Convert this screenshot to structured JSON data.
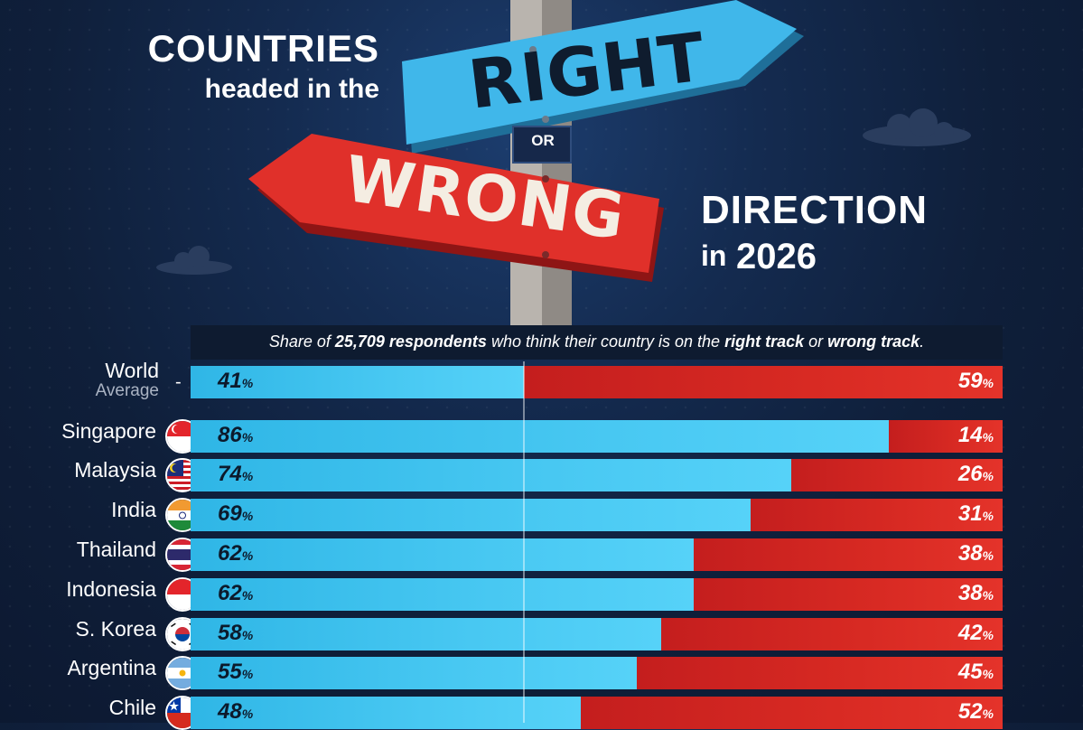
{
  "header": {
    "title_countries": "COUNTRIES",
    "title_headed": "headed in the",
    "title_right": "RIGHT",
    "title_or": "OR",
    "title_wrong": "WRONG",
    "title_direction": "DIRECTION",
    "title_in": "in",
    "title_year": "2026"
  },
  "subtitle": {
    "part1": "Share of ",
    "part2": "25,709 respondents",
    "part3": " who think their country is on the ",
    "part4": "right track",
    "part5": " or ",
    "part6": "wrong track",
    "part7": "."
  },
  "world": {
    "label_top": "World",
    "label_bottom": "Average",
    "dash": "-"
  },
  "colors": {
    "right_track": "#48c8f2",
    "wrong_track": "#d82a23",
    "background": "#142b50"
  },
  "chart_data": {
    "type": "bar",
    "orientation": "horizontal-stacked",
    "series": [
      {
        "name": "right track",
        "values": [
          41,
          86,
          74,
          69,
          62,
          62,
          58,
          55,
          48
        ]
      },
      {
        "name": "wrong track",
        "values": [
          59,
          14,
          26,
          31,
          38,
          38,
          42,
          45,
          52
        ]
      }
    ],
    "rows": [
      {
        "country": "World Average",
        "flag": "none",
        "right": 41,
        "wrong": 59,
        "right_text": "41",
        "wrong_text": "59"
      },
      {
        "country": "Singapore",
        "flag": "singapore-flag-icon",
        "right": 86,
        "wrong": 14,
        "right_text": "86",
        "wrong_text": "14"
      },
      {
        "country": "Malaysia",
        "flag": "malaysia-flag-icon",
        "right": 74,
        "wrong": 26,
        "right_text": "74",
        "wrong_text": "26"
      },
      {
        "country": "India",
        "flag": "india-flag-icon",
        "right": 69,
        "wrong": 31,
        "right_text": "69",
        "wrong_text": "31"
      },
      {
        "country": "Thailand",
        "flag": "thailand-flag-icon",
        "right": 62,
        "wrong": 38,
        "right_text": "62",
        "wrong_text": "38"
      },
      {
        "country": "Indonesia",
        "flag": "indonesia-flag-icon",
        "right": 62,
        "wrong": 38,
        "right_text": "62",
        "wrong_text": "38"
      },
      {
        "country": "S. Korea",
        "flag": "south-korea-flag-icon",
        "right": 58,
        "wrong": 42,
        "right_text": "58",
        "wrong_text": "42"
      },
      {
        "country": "Argentina",
        "flag": "argentina-flag-icon",
        "right": 55,
        "wrong": 45,
        "right_text": "55",
        "wrong_text": "45"
      },
      {
        "country": "Chile",
        "flag": "chile-flag-icon",
        "right": 48,
        "wrong": 52,
        "right_text": "48",
        "wrong_text": "52"
      }
    ],
    "pct_symbol": "%",
    "xlim": [
      0,
      100
    ],
    "reference_line": 41
  }
}
